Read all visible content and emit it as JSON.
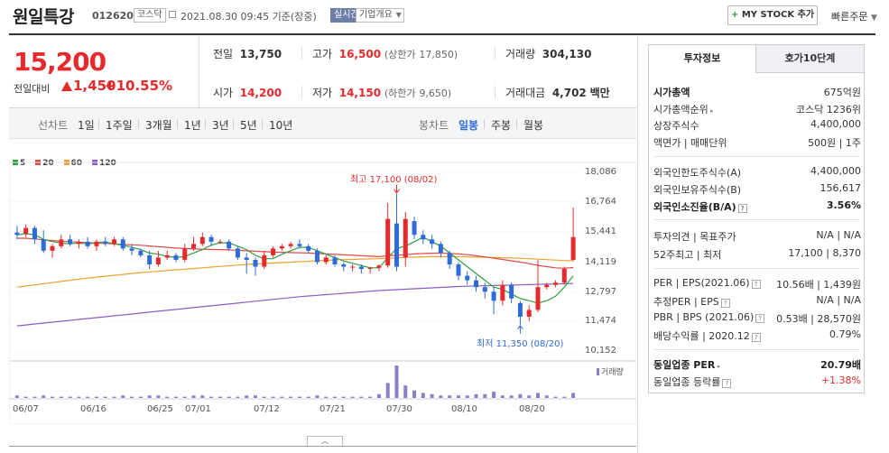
{
  "header": {
    "stock_name": "원일특강",
    "stock_code": "012620",
    "market_tag": "코스닥",
    "timestamp": "2021.08.30 09:45 기준(장중)",
    "live_tag": "실시간",
    "company_info": "기업개요",
    "mystock_plus": "+",
    "mystock_label": "MY STOCK 추가",
    "quick_order": "빠른주문"
  },
  "quote": {
    "price": "15,200",
    "change_label": "전일대비",
    "change_value": "1,450",
    "change_pct": "+10.55%",
    "prev_close_label": "전일",
    "prev_close": "13,750",
    "high_label": "고가",
    "high": "16,500",
    "upper_limit_label": "(상한가",
    "upper_limit": "17,850)",
    "volume_label": "거래량",
    "volume": "304,130",
    "open_label": "시가",
    "open": "14,200",
    "low_label": "저가",
    "low": "14,150",
    "lower_limit_label": "(하한가",
    "lower_limit": "9,650)",
    "amount_label": "거래대금",
    "amount": "4,702",
    "amount_unit": "백만"
  },
  "toolbar": {
    "line_chart": "선차트",
    "periods": [
      "1일",
      "1주일",
      "3개월",
      "1년",
      "3년",
      "5년",
      "10년"
    ],
    "candle_chart": "봉차트",
    "candle_periods": [
      "일봉",
      "주봉",
      "월봉"
    ],
    "active_candle": "일봉"
  },
  "chart_data": {
    "type": "candlestick",
    "legend": [
      {
        "name": "5",
        "color": "#2ea043"
      },
      {
        "name": "20",
        "color": "#e04a4a"
      },
      {
        "name": "60",
        "color": "#f0a030"
      },
      {
        "name": "120",
        "color": "#8b5cc8"
      }
    ],
    "y_ticks": [
      "18,086",
      "16,764",
      "15,441",
      "14,119",
      "12,797",
      "11,474",
      "10,152"
    ],
    "y_range": [
      10152,
      18086
    ],
    "x_ticks": [
      "06/07",
      "06/16",
      "06/25",
      "07/01",
      "07/12",
      "07/21",
      "07/30",
      "08/10",
      "08/20"
    ],
    "high_annotation": "최고 17,100 (08/02)",
    "low_annotation": "최저 11,350 (08/20)",
    "volume_label": "거래량",
    "candles": [
      {
        "o": 15400,
        "c": 15300,
        "h": 15700,
        "l": 15100
      },
      {
        "o": 15350,
        "c": 15600,
        "h": 15750,
        "l": 15200
      },
      {
        "o": 15600,
        "c": 15100,
        "h": 15700,
        "l": 14900
      },
      {
        "o": 15100,
        "c": 14600,
        "h": 15500,
        "l": 14500
      },
      {
        "o": 14600,
        "c": 14800,
        "h": 14900,
        "l": 14300
      },
      {
        "o": 14800,
        "c": 15100,
        "h": 15300,
        "l": 14700
      },
      {
        "o": 15100,
        "c": 14900,
        "h": 15300,
        "l": 14800
      },
      {
        "o": 14900,
        "c": 15000,
        "h": 15100,
        "l": 14700
      },
      {
        "o": 15000,
        "c": 14800,
        "h": 15200,
        "l": 14700
      },
      {
        "o": 14800,
        "c": 15000,
        "h": 15100,
        "l": 14600
      },
      {
        "o": 15000,
        "c": 14900,
        "h": 15200,
        "l": 14800
      },
      {
        "o": 14900,
        "c": 15100,
        "h": 15200,
        "l": 14800
      },
      {
        "o": 15100,
        "c": 14700,
        "h": 15200,
        "l": 14600
      },
      {
        "o": 14700,
        "c": 14600,
        "h": 14900,
        "l": 14400
      },
      {
        "o": 14600,
        "c": 14400,
        "h": 14700,
        "l": 14300
      },
      {
        "o": 14400,
        "c": 14000,
        "h": 14600,
        "l": 13800
      },
      {
        "o": 14000,
        "c": 14300,
        "h": 14600,
        "l": 13900
      },
      {
        "o": 14300,
        "c": 14400,
        "h": 14600,
        "l": 14200
      },
      {
        "o": 14400,
        "c": 14200,
        "h": 14500,
        "l": 14100
      },
      {
        "o": 14200,
        "c": 14700,
        "h": 14900,
        "l": 14100
      },
      {
        "o": 14700,
        "c": 14900,
        "h": 15200,
        "l": 14600
      },
      {
        "o": 14900,
        "c": 15200,
        "h": 15400,
        "l": 14800
      },
      {
        "o": 15200,
        "c": 15000,
        "h": 15300,
        "l": 14800
      },
      {
        "o": 15000,
        "c": 15000,
        "h": 15100,
        "l": 14900
      },
      {
        "o": 15000,
        "c": 14700,
        "h": 15100,
        "l": 14600
      },
      {
        "o": 14700,
        "c": 14300,
        "h": 14800,
        "l": 14200
      },
      {
        "o": 14300,
        "c": 14200,
        "h": 14500,
        "l": 13600
      },
      {
        "o": 14200,
        "c": 13900,
        "h": 14300,
        "l": 13500
      },
      {
        "o": 13900,
        "c": 14400,
        "h": 14600,
        "l": 13800
      },
      {
        "o": 14400,
        "c": 14700,
        "h": 14800,
        "l": 14300
      },
      {
        "o": 14700,
        "c": 14800,
        "h": 14900,
        "l": 14600
      },
      {
        "o": 14800,
        "c": 14900,
        "h": 15000,
        "l": 14700
      },
      {
        "o": 14900,
        "c": 14800,
        "h": 15100,
        "l": 14700
      },
      {
        "o": 14800,
        "c": 14600,
        "h": 14900,
        "l": 14500
      },
      {
        "o": 14600,
        "c": 14100,
        "h": 14700,
        "l": 14000
      },
      {
        "o": 14100,
        "c": 14300,
        "h": 14400,
        "l": 14000
      },
      {
        "o": 14300,
        "c": 14000,
        "h": 14400,
        "l": 13900
      },
      {
        "o": 14000,
        "c": 13900,
        "h": 14100,
        "l": 13700
      },
      {
        "o": 13900,
        "c": 13900,
        "h": 14000,
        "l": 13700
      },
      {
        "o": 13900,
        "c": 13800,
        "h": 14000,
        "l": 13600
      },
      {
        "o": 13800,
        "c": 13850,
        "h": 13900,
        "l": 13600
      },
      {
        "o": 13850,
        "c": 13950,
        "h": 14000,
        "l": 13700
      },
      {
        "o": 13950,
        "c": 16000,
        "h": 16700,
        "l": 13850
      },
      {
        "o": 15800,
        "c": 13900,
        "h": 17100,
        "l": 13700
      },
      {
        "o": 14300,
        "c": 16000,
        "h": 16300,
        "l": 13900
      },
      {
        "o": 15900,
        "c": 15300,
        "h": 16100,
        "l": 15100
      },
      {
        "o": 15300,
        "c": 15100,
        "h": 15500,
        "l": 14900
      },
      {
        "o": 15100,
        "c": 14900,
        "h": 15300,
        "l": 14700
      },
      {
        "o": 14900,
        "c": 14500,
        "h": 15000,
        "l": 14300
      },
      {
        "o": 14500,
        "c": 14000,
        "h": 14600,
        "l": 13800
      },
      {
        "o": 14000,
        "c": 13500,
        "h": 14100,
        "l": 13300
      },
      {
        "o": 13500,
        "c": 13300,
        "h": 13700,
        "l": 13100
      },
      {
        "o": 13300,
        "c": 13000,
        "h": 13500,
        "l": 12800
      },
      {
        "o": 13000,
        "c": 12800,
        "h": 13200,
        "l": 12500
      },
      {
        "o": 12800,
        "c": 12400,
        "h": 13000,
        "l": 11800
      },
      {
        "o": 12400,
        "c": 13100,
        "h": 13300,
        "l": 12200
      },
      {
        "o": 13100,
        "c": 12500,
        "h": 13200,
        "l": 12300
      },
      {
        "o": 12300,
        "c": 11700,
        "h": 12400,
        "l": 11350
      },
      {
        "o": 11700,
        "c": 12000,
        "h": 12200,
        "l": 11500
      },
      {
        "o": 12000,
        "c": 13000,
        "h": 14200,
        "l": 11900
      },
      {
        "o": 13000,
        "c": 13100,
        "h": 13200,
        "l": 12900
      },
      {
        "o": 13100,
        "c": 13200,
        "h": 13300,
        "l": 13000
      },
      {
        "o": 13200,
        "c": 13800,
        "h": 13900,
        "l": 13100
      },
      {
        "o": 14200,
        "c": 15200,
        "h": 16500,
        "l": 14150
      }
    ],
    "ma5": [
      15300,
      15350,
      15300,
      15100,
      15000,
      14950,
      14900,
      14950,
      14900,
      14950,
      15000,
      14900,
      14850,
      14750,
      14650,
      14500,
      14450,
      14350,
      14300,
      14350,
      14500,
      14650,
      14850,
      14950,
      14950,
      14800,
      14650,
      14400,
      14250,
      14250,
      14450,
      14600,
      14750,
      14750,
      14600,
      14450,
      14300,
      14150,
      14050,
      13950,
      13850,
      13850,
      14300,
      14700,
      14800,
      15000,
      15200,
      15000,
      14800,
      14500,
      14200,
      13900,
      13600,
      13300,
      13000,
      12900,
      12700,
      12500,
      12400,
      12300,
      12400,
      12600,
      13000,
      13500
    ],
    "ma20": [
      15150,
      15150,
      15120,
      15080,
      15050,
      15020,
      15000,
      14980,
      14960,
      14940,
      14920,
      14900,
      14880,
      14860,
      14840,
      14810,
      14780,
      14750,
      14720,
      14700,
      14680,
      14670,
      14660,
      14650,
      14640,
      14620,
      14600,
      14580,
      14560,
      14540,
      14530,
      14520,
      14510,
      14500,
      14480,
      14460,
      14440,
      14420,
      14400,
      14380,
      14360,
      14340,
      14380,
      14400,
      14430,
      14460,
      14480,
      14490,
      14500,
      14480,
      14460,
      14430,
      14380,
      14330,
      14270,
      14220,
      14160,
      14100,
      14030,
      13960,
      13900,
      13850,
      13830,
      13860
    ],
    "ma60": [
      13000,
      13050,
      13100,
      13150,
      13200,
      13250,
      13300,
      13350,
      13400,
      13440,
      13480,
      13520,
      13560,
      13600,
      13640,
      13670,
      13700,
      13730,
      13760,
      13790,
      13820,
      13850,
      13880,
      13910,
      13940,
      13970,
      14000,
      14020,
      14040,
      14060,
      14080,
      14100,
      14120,
      14140,
      14160,
      14180,
      14200,
      14210,
      14220,
      14230,
      14240,
      14250,
      14270,
      14290,
      14310,
      14320,
      14330,
      14340,
      14340,
      14340,
      14340,
      14330,
      14320,
      14310,
      14300,
      14290,
      14280,
      14270,
      14250,
      14230,
      14210,
      14190,
      14170,
      14160
    ],
    "ma120": [
      11300,
      11340,
      11380,
      11420,
      11460,
      11500,
      11540,
      11580,
      11620,
      11660,
      11700,
      11740,
      11780,
      11820,
      11860,
      11900,
      11940,
      11980,
      12020,
      12060,
      12100,
      12140,
      12180,
      12220,
      12260,
      12300,
      12340,
      12380,
      12420,
      12460,
      12500,
      12540,
      12580,
      12610,
      12640,
      12670,
      12700,
      12730,
      12760,
      12790,
      12820,
      12850,
      12870,
      12890,
      12910,
      12930,
      12950,
      12970,
      12990,
      13010,
      13030,
      13040,
      13050,
      13060,
      13070,
      13080,
      13090,
      13100,
      13110,
      13120,
      13130,
      13140,
      13150,
      13160
    ],
    "volumes": [
      2,
      1,
      1,
      2,
      1,
      1,
      1,
      1,
      1,
      1,
      1,
      1,
      2,
      1,
      1,
      2,
      2,
      1,
      1,
      1,
      2,
      2,
      1,
      1,
      1,
      1,
      2,
      2,
      1,
      1,
      1,
      1,
      1,
      1,
      2,
      1,
      1,
      1,
      1,
      1,
      1,
      3,
      12,
      26,
      10,
      6,
      4,
      3,
      2,
      2,
      2,
      2,
      3,
      3,
      5,
      2,
      2,
      3,
      2,
      4,
      2,
      1,
      1,
      4
    ]
  },
  "right_panel": {
    "tab_invest": "투자정보",
    "tab_orderbook": "호가10단계",
    "rows": {
      "market_cap_label": "시가총액",
      "market_cap": "675억원",
      "cap_rank_label": "시가총액순위",
      "cap_rank": "코스닥 1236위",
      "shares_label": "상장주식수",
      "shares": "4,400,000",
      "par_label": "액면가 | 매매단위",
      "par": "500원 | 1주",
      "foreign_limit_label": "외국인한도주식수(A)",
      "foreign_limit": "4,400,000",
      "foreign_hold_label": "외국인보유주식수(B)",
      "foreign_hold": "156,617",
      "foreign_ratio_label": "외국인소진율(B/A)",
      "foreign_ratio": "3.56%",
      "opinion_label": "투자의견 | 목표주가",
      "opinion": "N/A | N/A",
      "week52_label": "52주최고 | 최저",
      "week52": "17,100 | 8,370",
      "per_label": "PER | EPS(2021.06)",
      "per": "10.56배 | 1,439원",
      "est_per_label": "추정PER | EPS",
      "est_per": "N/A | N/A",
      "pbr_label": "PBR | BPS (2021.06)",
      "pbr": "0.53배 | 28,570원",
      "div_label": "배당수익률 | 2020.12",
      "div": "0.79%",
      "sector_per_label": "동일업종 PER",
      "sector_per": "20.79배",
      "sector_chg_label": "동일업종 등락률",
      "sector_chg": "+1.38%"
    }
  }
}
